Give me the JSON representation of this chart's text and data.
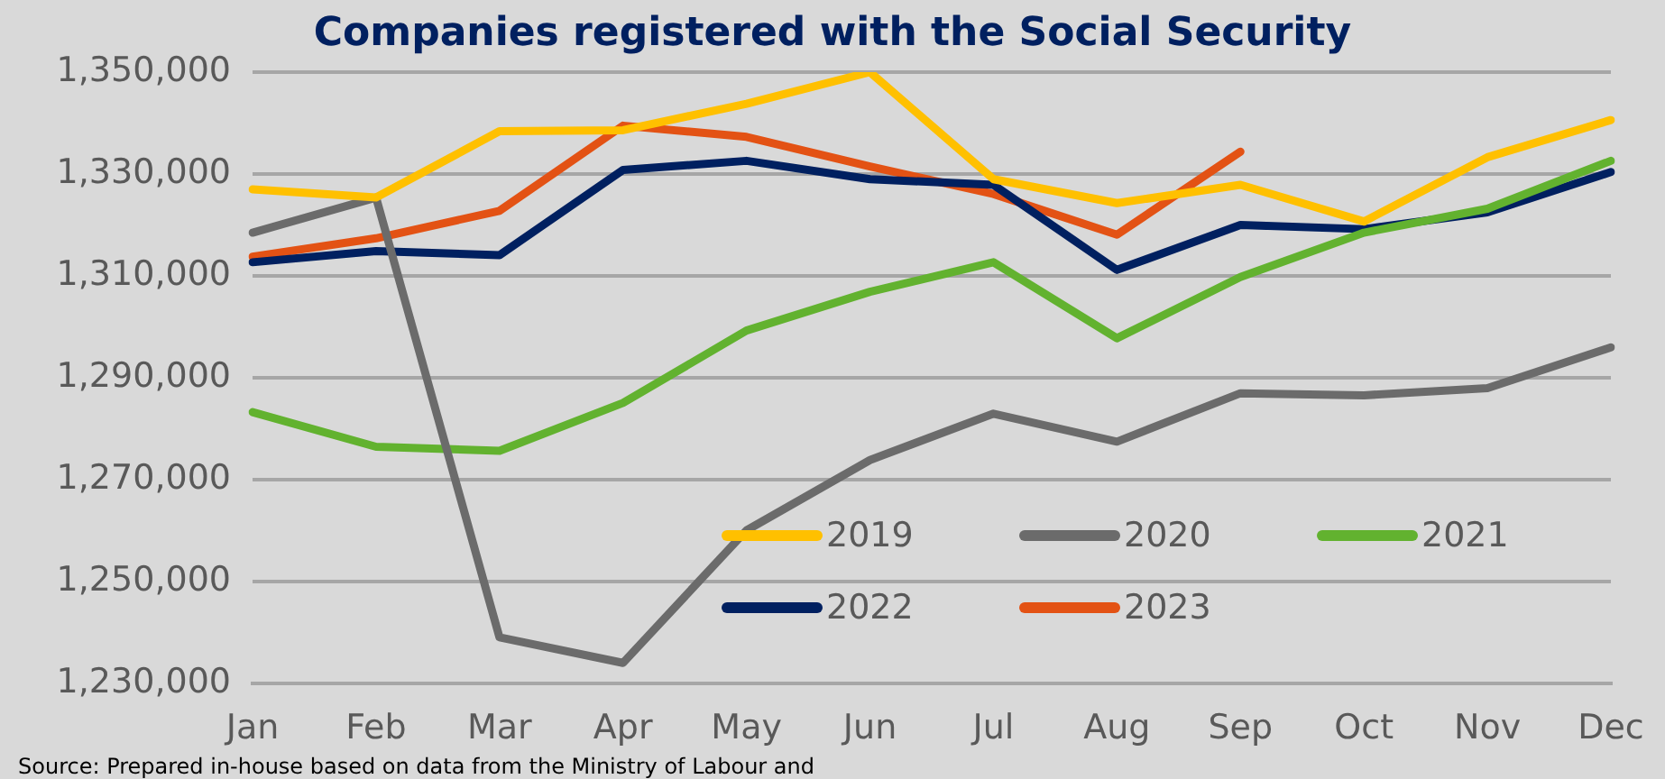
{
  "chart_data": {
    "type": "line",
    "title": "Companies registered with the Social Security",
    "categories": [
      "Jan",
      "Feb",
      "Mar",
      "Apr",
      "May",
      "Jun",
      "Jul",
      "Aug",
      "Sep",
      "Oct",
      "Nov",
      "Dec"
    ],
    "series": [
      {
        "name": "2019",
        "color": "#ffc000",
        "values": [
          1327000,
          1325400,
          1338400,
          1338600,
          1343800,
          1350000,
          1329000,
          1324300,
          1327900,
          1320700,
          1333300,
          1340600
        ]
      },
      {
        "name": "2020",
        "color": "#6b6b6b",
        "values": [
          1318500,
          1325400,
          1239100,
          1234100,
          1260100,
          1273900,
          1283000,
          1277500,
          1287000,
          1286600,
          1288000,
          1296000
        ]
      },
      {
        "name": "2021",
        "color": "#62b22f",
        "values": [
          1283300,
          1276500,
          1275700,
          1285100,
          1299300,
          1306900,
          1312700,
          1297800,
          1309800,
          1318500,
          1323200,
          1332600
        ]
      },
      {
        "name": "2022",
        "color": "#002060",
        "values": [
          1312700,
          1314900,
          1314100,
          1330800,
          1332600,
          1329000,
          1327900,
          1311200,
          1320000,
          1319200,
          1322500,
          1330400
        ]
      },
      {
        "name": "2023",
        "color": "#e35214",
        "values": [
          1313800,
          1317400,
          1322800,
          1339500,
          1337300,
          1331500,
          1326100,
          1318100,
          1334400,
          null,
          null,
          null
        ]
      }
    ],
    "ylim": [
      1230000,
      1350000
    ],
    "yticks": [
      {
        "value": 1230000,
        "label": "1,230,000"
      },
      {
        "value": 1250000,
        "label": "1,250,000"
      },
      {
        "value": 1270000,
        "label": "1,270,000"
      },
      {
        "value": 1290000,
        "label": "1,290,000"
      },
      {
        "value": 1310000,
        "label": "1,310,000"
      },
      {
        "value": 1330000,
        "label": "1,330,000"
      },
      {
        "value": 1350000,
        "label": "1,350,000"
      }
    ],
    "grid": "y",
    "legend": "bottom right",
    "marker": "none",
    "line_style": "solid",
    "annotations": [
      "Source: Prepared in-house based on data from the Ministry of Labour and"
    ]
  }
}
